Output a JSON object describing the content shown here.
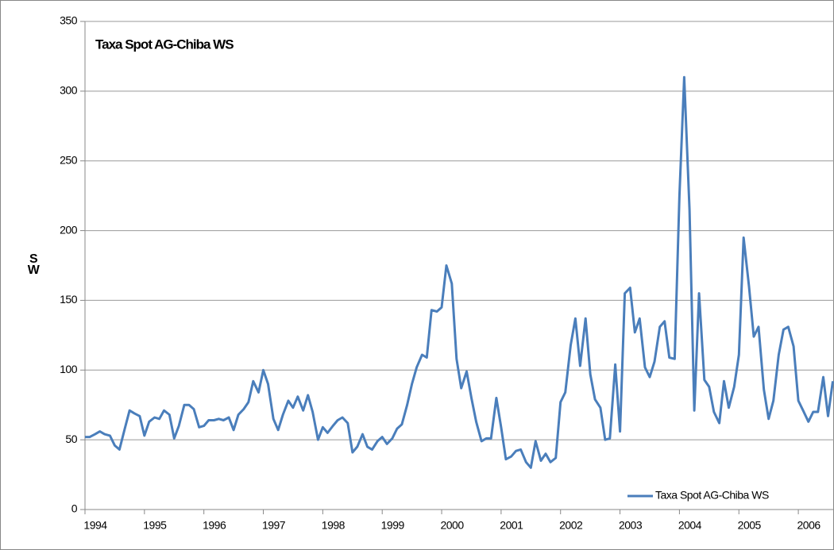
{
  "chart_data": {
    "type": "line",
    "title": "Taxa Spot AG-Chiba WS",
    "y_label": "SW",
    "x": [
      1994.0,
      1994.08,
      1994.17,
      1994.25,
      1994.33,
      1994.42,
      1994.5,
      1994.58,
      1994.67,
      1994.75,
      1994.83,
      1994.92,
      1995.0,
      1995.08,
      1995.17,
      1995.25,
      1995.33,
      1995.42,
      1995.5,
      1995.58,
      1995.67,
      1995.75,
      1995.83,
      1995.92,
      1996.0,
      1996.08,
      1996.17,
      1996.25,
      1996.33,
      1996.42,
      1996.5,
      1996.58,
      1996.67,
      1996.75,
      1996.83,
      1996.92,
      1997.0,
      1997.08,
      1997.17,
      1997.25,
      1997.33,
      1997.42,
      1997.5,
      1997.58,
      1997.67,
      1997.75,
      1997.83,
      1997.92,
      1998.0,
      1998.08,
      1998.17,
      1998.25,
      1998.33,
      1998.42,
      1998.5,
      1998.58,
      1998.67,
      1998.75,
      1998.83,
      1998.92,
      1999.0,
      1999.08,
      1999.17,
      1999.25,
      1999.33,
      1999.42,
      1999.5,
      1999.58,
      1999.67,
      1999.75,
      1999.83,
      1999.92,
      2000.0,
      2000.08,
      2000.17,
      2000.25,
      2000.33,
      2000.42,
      2000.5,
      2000.58,
      2000.67,
      2000.75,
      2000.83,
      2000.92,
      2001.0,
      2001.08,
      2001.17,
      2001.25,
      2001.33,
      2001.42,
      2001.5,
      2001.58,
      2001.67,
      2001.75,
      2001.83,
      2001.92,
      2002.0,
      2002.08,
      2002.17,
      2002.25,
      2002.33,
      2002.42,
      2002.5,
      2002.58,
      2002.67,
      2002.75,
      2002.83,
      2002.92,
      2003.0,
      2003.08,
      2003.17,
      2003.25,
      2003.33,
      2003.42,
      2003.5,
      2003.58,
      2003.67,
      2003.75,
      2003.83,
      2003.92,
      2004.0,
      2004.08,
      2004.17,
      2004.25,
      2004.33,
      2004.42,
      2004.5,
      2004.58,
      2004.67,
      2004.75,
      2004.83,
      2004.92,
      2005.0,
      2005.08,
      2005.17,
      2005.25,
      2005.33,
      2005.42,
      2005.5,
      2005.58,
      2005.67,
      2005.75,
      2005.83,
      2005.92,
      2006.0,
      2006.08,
      2006.17,
      2006.25,
      2006.33,
      2006.42,
      2006.5,
      2006.58
    ],
    "series": [
      {
        "name": "Taxa Spot AG-Chiba WS",
        "color": "#4a7ebb",
        "values": [
          52,
          52,
          54,
          56,
          54,
          53,
          46,
          43,
          58,
          71,
          69,
          67,
          53,
          63,
          66,
          65,
          71,
          68,
          51,
          60,
          75,
          75,
          72,
          59,
          60,
          64,
          64,
          65,
          64,
          66,
          57,
          68,
          72,
          77,
          92,
          84,
          100,
          90,
          65,
          57,
          68,
          78,
          73,
          81,
          71,
          82,
          70,
          50,
          59,
          55,
          60,
          64,
          66,
          62,
          41,
          45,
          54,
          45,
          43,
          49,
          52,
          47,
          51,
          58,
          61,
          75,
          90,
          102,
          111,
          109,
          143,
          142,
          145,
          175,
          162,
          108,
          87,
          99,
          80,
          63,
          49,
          51,
          51,
          80,
          59,
          36,
          38,
          42,
          43,
          34,
          30,
          49,
          35,
          40,
          34,
          37,
          77,
          84,
          118,
          137,
          103,
          137,
          97,
          79,
          73,
          50,
          51,
          104,
          56,
          155,
          159,
          127,
          137,
          102,
          95,
          106,
          131,
          135,
          109,
          108,
          225,
          310,
          215,
          71,
          155,
          93,
          88,
          70,
          62,
          92,
          73,
          88,
          111,
          195,
          160,
          124,
          131,
          86,
          65,
          78,
          111,
          129,
          131,
          117,
          78,
          71,
          63,
          70,
          70,
          95,
          67,
          92
        ]
      }
    ],
    "xlim": [
      1994,
      2006.6
    ],
    "xticks": [
      1994,
      1995,
      1996,
      1997,
      1998,
      1999,
      2000,
      2001,
      2002,
      2003,
      2004,
      2005,
      2006
    ],
    "ylim": [
      0,
      350
    ],
    "yticks": [
      0,
      50,
      100,
      150,
      200,
      250,
      300,
      350
    ],
    "grid": true,
    "legend": "lower right"
  }
}
